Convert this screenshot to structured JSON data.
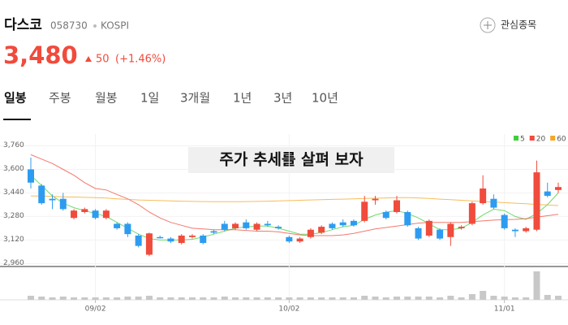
{
  "header": {
    "name": "다스코",
    "code": "058730",
    "market": "KOSPI",
    "watch": "관심종목",
    "price": "3,480",
    "change": "50",
    "change_pct": "(+1.46%)"
  },
  "tabs": [
    "일봉",
    "주봉",
    "월봉",
    "1일",
    "3개월",
    "1년",
    "3년",
    "10년"
  ],
  "chart_data": {
    "type": "candlestick",
    "annotation": "주가 추세를 살펴 보자",
    "categories": [
      null,
      null,
      null,
      null,
      null,
      null,
      "09/02",
      null,
      null,
      null,
      null,
      null,
      null,
      null,
      null,
      null,
      null,
      null,
      null,
      null,
      null,
      null,
      null,
      null,
      "10/02",
      null,
      null,
      null,
      null,
      null,
      null,
      null,
      null,
      null,
      null,
      null,
      null,
      null,
      null,
      null,
      null,
      null,
      null,
      null,
      "11/01",
      null,
      null,
      null,
      null,
      null
    ],
    "open": [
      3600,
      3490,
      3400,
      3400,
      3270,
      3310,
      3320,
      3270,
      3230,
      3230,
      3150,
      3020,
      3140,
      3130,
      3100,
      3140,
      3150,
      3180,
      3230,
      3200,
      3240,
      3190,
      3230,
      3210,
      3140,
      3110,
      3140,
      3170,
      3230,
      3240,
      3250,
      3250,
      3390,
      3310,
      3310,
      3310,
      3200,
      3150,
      3190,
      3140,
      3200,
      3230,
      3370,
      3400,
      3290,
      3190,
      3180,
      3190,
      3450,
      3460
    ],
    "high": [
      3680,
      3500,
      3430,
      3440,
      3330,
      3340,
      3330,
      3330,
      3240,
      3240,
      3160,
      3170,
      3150,
      3140,
      3160,
      3160,
      3160,
      3190,
      3250,
      3240,
      3260,
      3240,
      3250,
      3220,
      3150,
      3140,
      3200,
      3220,
      3240,
      3260,
      3260,
      3420,
      3420,
      3320,
      3420,
      3320,
      3210,
      3260,
      3200,
      3240,
      3220,
      3380,
      3560,
      3430,
      3300,
      3200,
      3210,
      3660,
      3510,
      3510
    ],
    "low": [
      3470,
      3360,
      3330,
      3320,
      3260,
      3300,
      3260,
      3260,
      3190,
      3140,
      3070,
      3010,
      3130,
      3100,
      3090,
      3130,
      3090,
      3160,
      3180,
      3190,
      3190,
      3180,
      3210,
      3190,
      3100,
      3100,
      3130,
      3160,
      3190,
      3210,
      3210,
      3240,
      3360,
      3260,
      3300,
      3210,
      3120,
      3140,
      3120,
      3080,
      3190,
      3220,
      3360,
      3330,
      3190,
      3140,
      3170,
      3180,
      3410,
      3440
    ],
    "close": [
      3510,
      3370,
      3390,
      3330,
      3320,
      3330,
      3270,
      3320,
      3200,
      3160,
      3080,
      3165,
      3135,
      3110,
      3150,
      3150,
      3100,
      3170,
      3190,
      3230,
      3200,
      3230,
      3220,
      3200,
      3110,
      3130,
      3190,
      3210,
      3200,
      3220,
      3220,
      3380,
      3400,
      3270,
      3390,
      3220,
      3130,
      3250,
      3130,
      3230,
      3210,
      3370,
      3470,
      3340,
      3200,
      3180,
      3200,
      3580,
      3420,
      3480
    ],
    "up_color": "#f04b3c",
    "down_color": "#2d9cf0",
    "ma": [
      {
        "name": "5",
        "color": "#3fcf3a",
        "values": [
          3560,
          3490,
          3420,
          3370,
          3340,
          3320,
          3300,
          3280,
          3240,
          3200,
          3160,
          3130,
          3120,
          3120,
          3120,
          3125,
          3140,
          3160,
          3180,
          3200,
          3210,
          3215,
          3215,
          3200,
          3180,
          3160,
          3160,
          3170,
          3190,
          3210,
          3220,
          3260,
          3290,
          3310,
          3320,
          3300,
          3270,
          3230,
          3190,
          3190,
          3200,
          3240,
          3290,
          3330,
          3320,
          3280,
          3260,
          3300,
          3360,
          3440
        ]
      },
      {
        "name": "20",
        "color": "#f04b3c",
        "values": [
          3700,
          3670,
          3640,
          3600,
          3560,
          3510,
          3470,
          3460,
          3430,
          3400,
          3360,
          3310,
          3270,
          3240,
          3220,
          3200,
          3195,
          3190,
          3190,
          3190,
          3185,
          3180,
          3180,
          3175,
          3165,
          3155,
          3150,
          3150,
          3150,
          3155,
          3165,
          3180,
          3195,
          3205,
          3215,
          3225,
          3235,
          3240,
          3240,
          3240,
          3240,
          3245,
          3250,
          3255,
          3258,
          3260,
          3265,
          3275,
          3285,
          3295
        ]
      },
      {
        "name": "60",
        "color": "#f5a623",
        "values": [
          3420,
          3418,
          3416,
          3414,
          3412,
          3410,
          3408,
          3405,
          3400,
          3396,
          3392,
          3390,
          3388,
          3386,
          3384,
          3382,
          3381,
          3380,
          3380,
          3380,
          3381,
          3382,
          3384,
          3386,
          3388,
          3390,
          3392,
          3394,
          3396,
          3398,
          3400,
          3402,
          3404,
          3406,
          3408,
          3408,
          3406,
          3402,
          3398,
          3394,
          3390,
          3386,
          3382,
          3378,
          3374,
          3370,
          3366,
          3362,
          3358,
          3354
        ]
      }
    ],
    "volume": [
      5,
      4,
      3,
      4,
      3,
      3,
      3,
      3,
      3,
      4,
      4,
      5,
      3,
      3,
      3,
      3,
      3,
      3,
      4,
      3,
      3,
      3,
      3,
      3,
      3,
      3,
      3,
      3,
      3,
      3,
      3,
      5,
      4,
      3,
      4,
      4,
      4,
      4,
      3,
      5,
      3,
      7,
      11,
      5,
      4,
      3,
      3,
      35,
      6,
      5
    ],
    "volume_color": "#c8c8c8",
    "ylim": [
      2940,
      3840
    ],
    "yticks": [
      {
        "value": 2960,
        "label": "2,960"
      },
      {
        "value": 3120,
        "label": "3,120"
      },
      {
        "value": 3280,
        "label": "3,280"
      },
      {
        "value": 3440,
        "label": "3,440"
      },
      {
        "value": 3600,
        "label": "3,600"
      },
      {
        "value": 3760,
        "label": "3,760"
      }
    ],
    "grid": true
  }
}
